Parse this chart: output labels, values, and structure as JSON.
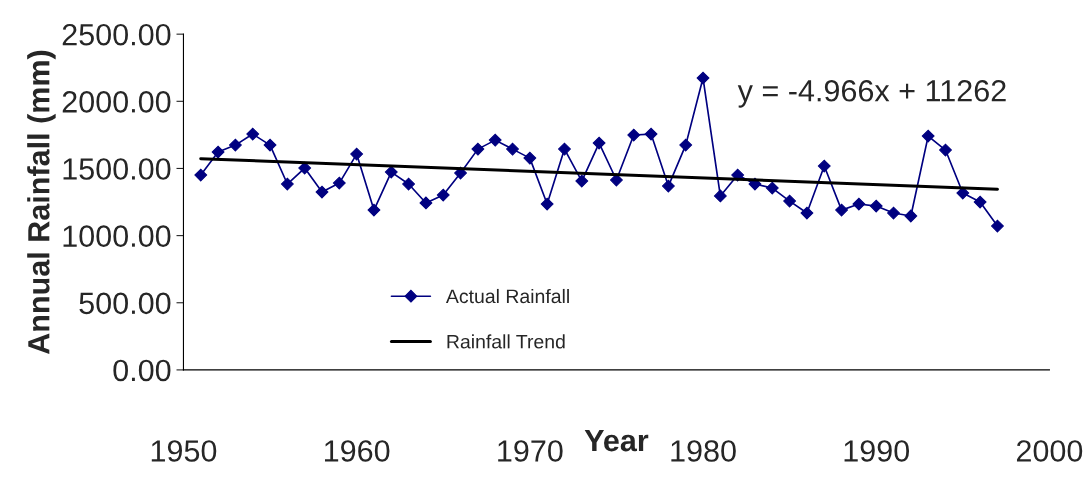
{
  "chart_data": {
    "type": "line",
    "xlabel": "Year",
    "ylabel": "Annual Rainfall (mm)",
    "xlim": [
      1950,
      2000
    ],
    "xticks": [
      1950,
      1960,
      1970,
      1980,
      1990,
      2000
    ],
    "ylim": [
      0,
      2500
    ],
    "yticks": [
      {
        "value": 0,
        "label": "0.00"
      },
      {
        "value": 500,
        "label": "500.00"
      },
      {
        "value": 1000,
        "label": "1000.00"
      },
      {
        "value": 1500,
        "label": "1500.00"
      },
      {
        "value": 2000,
        "label": "2000.00"
      },
      {
        "value": 2500,
        "label": "2500.00"
      }
    ],
    "grid": false,
    "legend": "bottom left",
    "annotations": [
      "y = -4.966x + 11262"
    ],
    "series": [
      {
        "name": "Actual Rainfall",
        "color": "#000080",
        "marker": "diamond",
        "x": [
          1951,
          1952,
          1953,
          1954,
          1955,
          1956,
          1957,
          1958,
          1959,
          1960,
          1961,
          1962,
          1963,
          1964,
          1965,
          1966,
          1967,
          1968,
          1969,
          1970,
          1971,
          1972,
          1973,
          1974,
          1975,
          1976,
          1977,
          1978,
          1979,
          1980,
          1981,
          1982,
          1983,
          1984,
          1985,
          1986,
          1987,
          1988,
          1989,
          1990,
          1991,
          1992,
          1993,
          1994,
          1995,
          1996,
          1997
        ],
        "values": [
          1451,
          1622,
          1674,
          1756,
          1674,
          1384,
          1503,
          1324,
          1391,
          1607,
          1190,
          1473,
          1384,
          1243,
          1302,
          1466,
          1644,
          1711,
          1644,
          1577,
          1235,
          1644,
          1406,
          1689,
          1414,
          1749,
          1756,
          1369,
          1674,
          2173,
          1295,
          1451,
          1384,
          1354,
          1257,
          1168,
          1518,
          1190,
          1235,
          1220,
          1168,
          1146,
          1741,
          1637,
          1317,
          1250,
          1071
        ]
      },
      {
        "name": "Rainfall Trend",
        "color": "#000000",
        "type": "line",
        "marker": "none",
        "x": [
          1951,
          1997
        ],
        "values": [
          1573,
          1345
        ]
      }
    ]
  }
}
